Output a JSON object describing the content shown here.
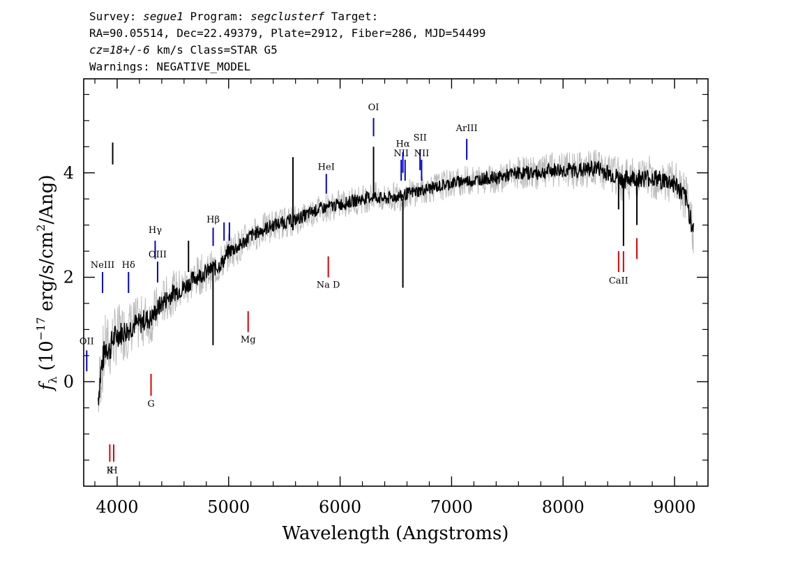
{
  "header": {
    "line1": {
      "survey_label": "Survey: ",
      "survey": "segue1",
      "program_label": " Program: ",
      "program": "segclusterf",
      "target_label": " Target:"
    },
    "line2": "RA=90.05514, Dec=22.49379, Plate=2912, Fiber=286, MJD=54499",
    "line3": {
      "cz": "cz=18+/-6",
      "rest": " km/s Class=STAR G5"
    },
    "line4": "Warnings: NEGATIVE_MODEL"
  },
  "chart_data": {
    "type": "line",
    "xlabel": "Wavelength (Angstroms)",
    "ylabel_parts": {
      "f": "f",
      "sub": "λ",
      "pre": " (10",
      "exp": "−17",
      "mid": " erg/s/cm",
      "exp2": "2",
      "post": "/Ang)"
    },
    "xlim": [
      3700,
      9300
    ],
    "ylim": [
      -2.0,
      5.8
    ],
    "x_ticks": [
      4000,
      5000,
      6000,
      7000,
      8000,
      9000
    ],
    "x_tick_labels": [
      "4000",
      "5000",
      "6000",
      "7000",
      "8000",
      "9000"
    ],
    "y_ticks": [
      0,
      2,
      4
    ],
    "y_tick_labels": [
      "0",
      "2",
      "4"
    ],
    "series": [
      {
        "role": "flux",
        "color": "#000000",
        "x": [
          3830,
          3860,
          3880,
          3900,
          3930,
          3960,
          4000,
          4050,
          4100,
          4150,
          4200,
          4250,
          4300,
          4350,
          4400,
          4450,
          4500,
          4550,
          4600,
          4650,
          4700,
          4750,
          4800,
          4850,
          4900,
          4950,
          5000,
          5100,
          5200,
          5300,
          5400,
          5500,
          5600,
          5700,
          5800,
          5900,
          6000,
          6100,
          6200,
          6300,
          6400,
          6500,
          6550,
          6600,
          6700,
          6800,
          6900,
          7000,
          7100,
          7200,
          7300,
          7400,
          7500,
          7600,
          7700,
          7800,
          7900,
          8000,
          8100,
          8200,
          8300,
          8400,
          8500,
          8540,
          8600,
          8700,
          8800,
          8900,
          9000,
          9100,
          9170
        ],
        "y": [
          -0.3,
          0.3,
          0.5,
          0.7,
          0.6,
          0.8,
          0.9,
          0.95,
          1.0,
          1.1,
          1.1,
          1.2,
          1.2,
          1.35,
          1.5,
          1.6,
          1.7,
          1.75,
          1.8,
          1.9,
          2.0,
          2.05,
          2.1,
          2.15,
          2.2,
          2.3,
          2.5,
          2.6,
          2.8,
          2.9,
          3.0,
          3.05,
          3.1,
          3.2,
          3.3,
          3.35,
          3.4,
          3.45,
          3.5,
          3.55,
          3.5,
          3.55,
          3.55,
          3.6,
          3.65,
          3.7,
          3.75,
          3.8,
          3.85,
          3.85,
          3.9,
          3.9,
          3.95,
          4.0,
          4.0,
          4.0,
          4.05,
          4.05,
          4.05,
          4.05,
          4.1,
          4.0,
          3.9,
          3.85,
          3.9,
          3.9,
          3.9,
          3.85,
          3.8,
          3.5,
          2.9
        ]
      },
      {
        "role": "error",
        "color": "#bbbbbb",
        "x": [
          3830,
          3900,
          4000,
          4100,
          4200,
          4300,
          4400,
          4500,
          4600,
          4700,
          4800,
          4900,
          5000,
          5200,
          5400,
          5600,
          5800,
          6000,
          6200,
          6400,
          6600,
          6800,
          7000,
          7200,
          7400,
          7600,
          7800,
          8000,
          8200,
          8400,
          8600,
          8800,
          9000,
          9170
        ],
        "y": [
          0.55,
          0.5,
          0.45,
          0.42,
          0.4,
          0.38,
          0.36,
          0.33,
          0.32,
          0.3,
          0.29,
          0.28,
          0.27,
          0.25,
          0.24,
          0.23,
          0.22,
          0.22,
          0.22,
          0.22,
          0.22,
          0.22,
          0.22,
          0.22,
          0.23,
          0.24,
          0.25,
          0.27,
          0.29,
          0.31,
          0.32,
          0.33,
          0.35,
          0.38
        ]
      }
    ],
    "features": [
      {
        "x": 3960,
        "y1": 4.16,
        "y2": 4.58,
        "color": "#000000"
      },
      {
        "x": 4640,
        "y1": 2.1,
        "y2": 2.7,
        "color": "#000000"
      },
      {
        "x": 4860,
        "y1": 0.7,
        "y2": 2.3,
        "color": "#000000"
      },
      {
        "x": 5577,
        "y1": 2.9,
        "y2": 4.3,
        "color": "#000000"
      },
      {
        "x": 6300,
        "y1": 3.5,
        "y2": 4.5,
        "color": "#000000"
      },
      {
        "x": 6563,
        "y1": 1.8,
        "y2": 3.5,
        "color": "#000000"
      },
      {
        "x": 8498,
        "y1": 3.3,
        "y2": 3.9,
        "color": "#000000"
      },
      {
        "x": 8542,
        "y1": 2.6,
        "y2": 3.9,
        "color": "#000000"
      },
      {
        "x": 8662,
        "y1": 3.0,
        "y2": 3.9,
        "color": "#000000"
      }
    ],
    "emission_lines": [
      {
        "label": "OII",
        "x": 3727,
        "y1": 0.2,
        "y2": 0.6,
        "label_y": 0.72
      },
      {
        "label": "NeIII",
        "x": 3869,
        "y1": 1.7,
        "y2": 2.1,
        "label_y": 2.18
      },
      {
        "label": "Hδ",
        "x": 4102,
        "y1": 1.7,
        "y2": 2.1,
        "label_y": 2.18
      },
      {
        "label": "Hγ",
        "x": 4341,
        "y1": 2.35,
        "y2": 2.7,
        "label_y": 2.85
      },
      {
        "label": "OIII",
        "x": 4363,
        "y1": 1.9,
        "y2": 2.3,
        "label_y": 2.38
      },
      {
        "label": "Hβ",
        "x": 4861,
        "y1": 2.6,
        "y2": 2.95,
        "label_y": 3.05
      },
      {
        "label": "OIII",
        "x": 4959,
        "y1": 2.7,
        "y2": 3.05,
        "label_y": null
      },
      {
        "label": "",
        "x": 5007,
        "y1": 2.7,
        "y2": 3.05,
        "label_y": 3.12
      },
      {
        "label": "HeI",
        "x": 5876,
        "y1": 3.6,
        "y2": 3.98,
        "label_y": 4.06
      },
      {
        "label": "OI",
        "x": 6300,
        "y1": 4.7,
        "y2": 5.05,
        "label_y": 5.2
      },
      {
        "label": "NII",
        "x": 6548,
        "y1": 3.85,
        "y2": 4.25,
        "label_y": 4.32
      },
      {
        "label": "Hα",
        "x": 6563,
        "y1": 4.0,
        "y2": 4.4,
        "label_y": 4.5
      },
      {
        "label": "",
        "x": 6583,
        "y1": 3.85,
        "y2": 4.25,
        "label_y": null
      },
      {
        "label": "SII",
        "x": 6717,
        "y1": 4.05,
        "y2": 4.45,
        "label_y": 4.62
      },
      {
        "label": "NII",
        "x": 6731,
        "y1": 3.85,
        "y2": 4.25,
        "label_y": 4.32
      },
      {
        "label": "ArIII",
        "x": 7136,
        "y1": 4.25,
        "y2": 4.65,
        "label_y": 4.8
      }
    ],
    "absorption_lines": [
      {
        "label": "K",
        "x": 3934,
        "y1": -1.53,
        "y2": -1.2,
        "label_y": -1.75
      },
      {
        "label": "H",
        "x": 3969,
        "y1": -1.53,
        "y2": -1.2,
        "label_y": -1.75
      },
      {
        "label": "G",
        "x": 4304,
        "y1": -0.27,
        "y2": 0.15,
        "label_y": -0.48
      },
      {
        "label": "Mg",
        "x": 5175,
        "y1": 0.95,
        "y2": 1.35,
        "label_y": 0.75
      },
      {
        "label": "Na D",
        "x": 5894,
        "y1": 2.0,
        "y2": 2.4,
        "label_y": 1.8
      },
      {
        "label": "CaII",
        "x": 8498,
        "y1": 2.1,
        "y2": 2.5,
        "label_y": 1.88
      },
      {
        "label": "",
        "x": 8542,
        "y1": 2.1,
        "y2": 2.5,
        "label_y": null
      },
      {
        "label": "",
        "x": 8662,
        "y1": 2.35,
        "y2": 2.75,
        "label_y": null
      }
    ],
    "colors": {
      "emission": "#0000cc",
      "absorption": "#dd0000",
      "flux": "#000000",
      "error": "#bbbbbb"
    }
  }
}
